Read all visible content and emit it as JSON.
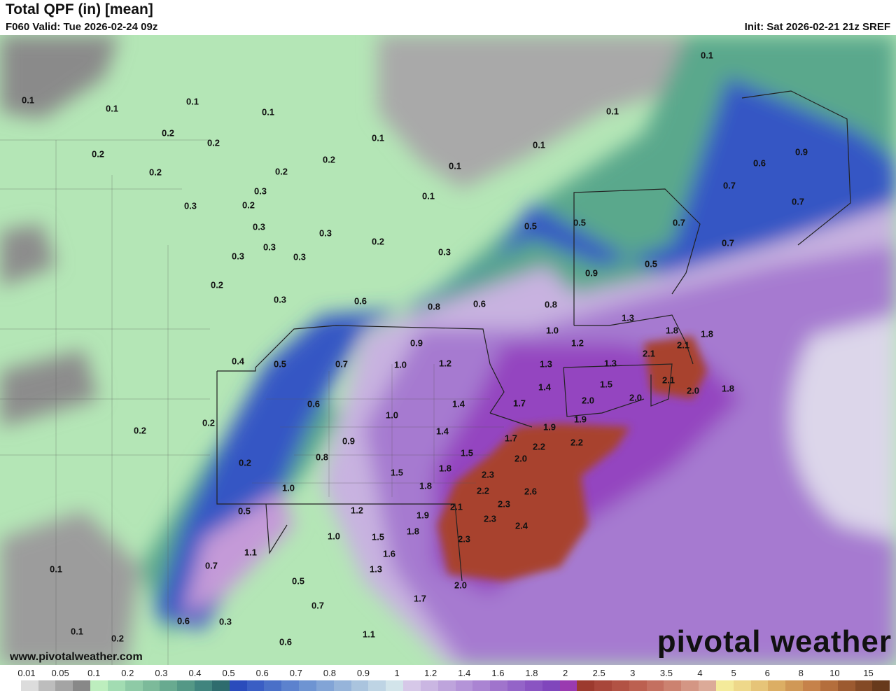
{
  "header": {
    "title": "Total QPF (in) [mean]",
    "valid": "F060 Valid: Tue 2026-02-24 09z",
    "init": "Init: Sat 2026-02-21 21z SREF"
  },
  "footer": {
    "site": "www.pivotalweather.com",
    "logo": "pivotal weather"
  },
  "legend": {
    "ticks": [
      "0.01",
      "0.05",
      "0.1",
      "0.2",
      "0.3",
      "0.4",
      "0.5",
      "0.6",
      "0.7",
      "0.8",
      "0.9",
      "1",
      "1.2",
      "1.4",
      "1.6",
      "1.8",
      "2",
      "2.5",
      "3",
      "3.5",
      "4",
      "5",
      "6",
      "8",
      "10",
      "15"
    ],
    "colors": [
      "#ffffff",
      "#dcdcdc",
      "#bdbdbd",
      "#a4a4a4",
      "#888888",
      "#bdeebe",
      "#a2dcb2",
      "#8ecaa6",
      "#7cba9a",
      "#68aa90",
      "#549886",
      "#40847e",
      "#2e6c6e",
      "#2a4cbc",
      "#3a5ec4",
      "#4a70c8",
      "#5c82ce",
      "#6e94d2",
      "#82a4d6",
      "#96b4da",
      "#aac4de",
      "#bed4e4",
      "#d2e4ea",
      "#d6c8e8",
      "#cab6e2",
      "#bea4dc",
      "#b494d8",
      "#aa84d2",
      "#a074cc",
      "#9464c8",
      "#8a54c2",
      "#8046bc",
      "#9a3ab0",
      "#9c3a2e",
      "#a8463a",
      "#b25244",
      "#bc6050",
      "#c47060",
      "#cc8270",
      "#d49684",
      "#dcaa98",
      "#f4ea9a",
      "#eed88a",
      "#e6c478",
      "#dcae64",
      "#d09856",
      "#c6824a",
      "#b46e3c",
      "#9c5a30",
      "#844a26",
      "#683a1c"
    ]
  },
  "map": {
    "labels": [
      "0.1",
      "0.1",
      "0.1",
      "0.1",
      "0.1",
      "0.1",
      "0.1",
      "0.1",
      "0.1",
      "0.1",
      "0.2",
      "0.2",
      "0.2",
      "0.2",
      "0.2",
      "0.2",
      "0.2",
      "0.2",
      "0.2",
      "0.2",
      "0.3",
      "0.3",
      "0.3",
      "0.3",
      "0.3",
      "0.3",
      "0.3",
      "0.3",
      "0.3",
      "0.4",
      "0.6",
      "0.7",
      "0.7",
      "0.6",
      "0.9",
      "0.5",
      "0.7",
      "0.7",
      "0.5",
      "0.5",
      "0.9",
      "0.8",
      "1.0",
      "0.6",
      "0.8",
      "0.9",
      "0.5",
      "0.7",
      "1.0",
      "1.2",
      "1.4",
      "1.3",
      "1.8",
      "1.3",
      "1.8",
      "2.1",
      "2.1",
      "2.1",
      "2.0",
      "1.8",
      "1.2",
      "1.3",
      "1.5",
      "2.0",
      "2.0",
      "1.4",
      "1.7",
      "1.9",
      "1.9",
      "2.2",
      "2.2",
      "0.6",
      "1.0",
      "1.4",
      "1.5",
      "1.7",
      "2.0",
      "2.3",
      "0.2",
      "0.9",
      "0.8",
      "1.5",
      "1.8",
      "2.3",
      "2.2",
      "2.6",
      "0.2",
      "1.0",
      "1.8",
      "2.1",
      "2.3",
      "2.4",
      "2.3",
      "0.5",
      "1.2",
      "1.9",
      "1.8",
      "1.0",
      "1.5",
      "1.6",
      "1.1",
      "0.7",
      "1.3",
      "1.7",
      "2.0",
      "0.5",
      "0.7",
      "0.6",
      "0.3",
      "0.6",
      "1.1",
      "0.2",
      "0.1",
      "0.1"
    ]
  }
}
